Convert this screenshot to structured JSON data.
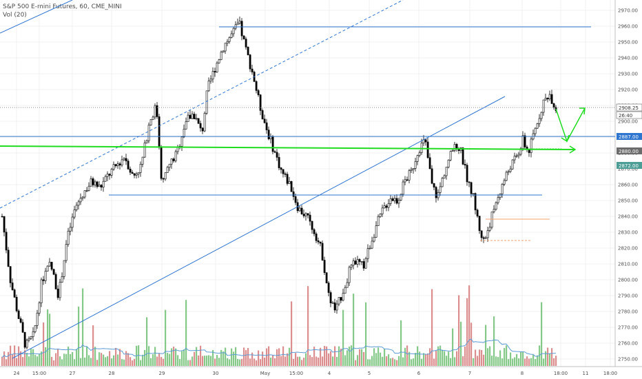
{
  "legend": {
    "symbol_title": "S&P 500 E-mini Futures, 60, CME_MINI",
    "volume_title": "Vol (20)"
  },
  "price_axis": {
    "labels": [
      "2970.00",
      "2960.00",
      "2950.00",
      "2940.00",
      "2930.00",
      "2920.00",
      "2910.00",
      "2900.00",
      "2890.00",
      "2880.00",
      "2870.00",
      "2860.00",
      "2850.00",
      "2840.00",
      "2830.00",
      "2820.00",
      "2810.00",
      "2800.00",
      "2790.00",
      "2780.00",
      "2770.00",
      "2760.00",
      "2750.00"
    ]
  },
  "time_axis": {
    "labels": [
      "24",
      "15:00",
      "27",
      "28",
      "29",
      "30",
      "May",
      "15:00",
      "4",
      "5",
      "6",
      "7",
      "8",
      "18:00",
      "11",
      "18:00"
    ]
  },
  "price_tags": {
    "last_price": "2908.25",
    "countdown": "26:40",
    "blue_level": "2887.00",
    "green_level": "2880.00",
    "teal_level": "2872.00"
  },
  "colors": {
    "up_candle": "#ffffff",
    "down_candle": "#000000",
    "vol_up": "#6fbf73",
    "vol_down": "#d67a7a",
    "blue_line": "#2e75d0",
    "green_line": "#1fdc1f",
    "orange_line": "#f0a070",
    "teal_tag": "#4b9d96"
  },
  "chart_data": {
    "type": "candlestick",
    "price_range": [
      2745,
      2975
    ],
    "horizontal_levels": [
      2960,
      2887,
      2880,
      2852,
      2838,
      2824
    ],
    "closes_sample": [
      2840,
      2790,
      2760,
      2800,
      2855,
      2870,
      2880,
      2940,
      2960,
      2900,
      2880,
      2850,
      2820,
      2790,
      2810,
      2860,
      2888,
      2860,
      2825,
      2860,
      2895,
      2908
    ]
  }
}
